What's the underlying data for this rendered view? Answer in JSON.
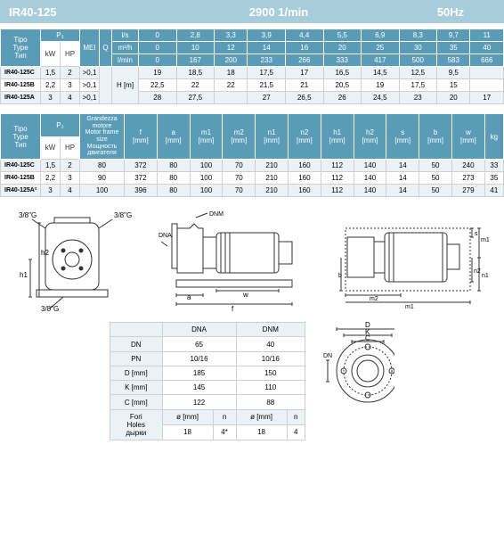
{
  "header": {
    "model": "IR40-125",
    "rpm": "2900 1/min",
    "hz": "50Hz"
  },
  "colors": {
    "header_bg": "#a8ccd9",
    "table_head": "#5a9cb8",
    "stripe": "#eaf2f5",
    "border": "#d0d0d0"
  },
  "table1": {
    "type_label": "Tipo\nType\nТип",
    "p2": "P₂",
    "kw": "kW",
    "hp": "HP",
    "mei": "MEI",
    "q": "Q",
    "units": [
      "l/s",
      "m³/h",
      "l/min"
    ],
    "flow_ls": [
      "0",
      "2,8",
      "3,3",
      "3,9",
      "4,4",
      "5,5",
      "6,9",
      "8,3",
      "9,7",
      "11"
    ],
    "flow_m3h": [
      "0",
      "10",
      "12",
      "14",
      "16",
      "20",
      "25",
      "30",
      "35",
      "40"
    ],
    "flow_lmin": [
      "0",
      "167",
      "200",
      "233",
      "266",
      "333",
      "417",
      "500",
      "583",
      "666"
    ],
    "hm": "H [m]",
    "rows": [
      {
        "name": "IR40-125C",
        "kw": "1,5",
        "hp": "2",
        "mei": ">0,1",
        "v": [
          "19",
          "18,5",
          "18",
          "17,5",
          "17",
          "16,5",
          "14,5",
          "12,5",
          "9,5",
          ""
        ]
      },
      {
        "name": "IR40-125B",
        "kw": "2,2",
        "hp": "3",
        "mei": ">0,1",
        "v": [
          "22,5",
          "22",
          "22",
          "21,5",
          "21",
          "20,5",
          "19",
          "17,5",
          "15",
          ""
        ]
      },
      {
        "name": "IR40-125A",
        "kw": "3",
        "hp": "4",
        "mei": ">0,1",
        "v": [
          "28",
          "27,5",
          "",
          "27",
          "26,5",
          "26",
          "24,5",
          "23",
          "20",
          "17"
        ]
      }
    ]
  },
  "table2": {
    "type_label": "Tipo\nType\nТип",
    "p2": "P₂",
    "kw": "kW",
    "hp": "HP",
    "frame": "Grandezza\nmotore\nMotor frame\nsize\nМощность\nдвигателя",
    "cols": [
      "f\n[mm]",
      "a\n[mm]",
      "m1\n[mm]",
      "m2\n[mm]",
      "n1\n[mm]",
      "n2\n[mm]",
      "h1\n[mm]",
      "h2\n[mm]",
      "s\n[mm]",
      "b\n[mm]",
      "w\n[mm]",
      "kg"
    ],
    "rows": [
      {
        "name": "IR40-125C",
        "kw": "1,5",
        "hp": "2",
        "frame": "80",
        "v": [
          "372",
          "80",
          "100",
          "70",
          "210",
          "160",
          "112",
          "140",
          "14",
          "50",
          "240",
          "33"
        ]
      },
      {
        "name": "IR40-125B",
        "kw": "2,2",
        "hp": "3",
        "frame": "90",
        "v": [
          "372",
          "80",
          "100",
          "70",
          "210",
          "160",
          "112",
          "140",
          "14",
          "50",
          "273",
          "35"
        ]
      },
      {
        "name": "IR40-125A²",
        "kw": "3",
        "hp": "4",
        "frame": "100",
        "v": [
          "396",
          "80",
          "100",
          "70",
          "210",
          "160",
          "112",
          "140",
          "14",
          "50",
          "279",
          "41"
        ]
      }
    ]
  },
  "table3": {
    "dna": "DNA",
    "dnm": "DNM",
    "rows": [
      {
        "label": "DN",
        "a": "65",
        "m": "40"
      },
      {
        "label": "PN",
        "a": "10/16",
        "m": "10/16"
      },
      {
        "label": "D [mm]",
        "a": "185",
        "m": "150"
      },
      {
        "label": "K [mm]",
        "a": "145",
        "m": "110"
      },
      {
        "label": "C [mm]",
        "a": "122",
        "m": "88"
      }
    ],
    "fori": "Fori\nHoles\nдырки",
    "fori_head": [
      "ø [mm]",
      "n",
      "ø [mm]",
      "n"
    ],
    "fori_vals": [
      "18",
      "4*",
      "18",
      "4"
    ]
  },
  "labels": {
    "g38": "3/8\"G",
    "dnm": "DNM",
    "dna": "DNA",
    "h1": "h1",
    "h2": "h2",
    "a": "a",
    "f": "f",
    "w": "w",
    "s": "s",
    "m1": "m1",
    "m2": "m2",
    "n1": "n1",
    "n2": "n2",
    "b": "b",
    "D": "D",
    "K": "K",
    "C": "C",
    "DN": "DN"
  }
}
